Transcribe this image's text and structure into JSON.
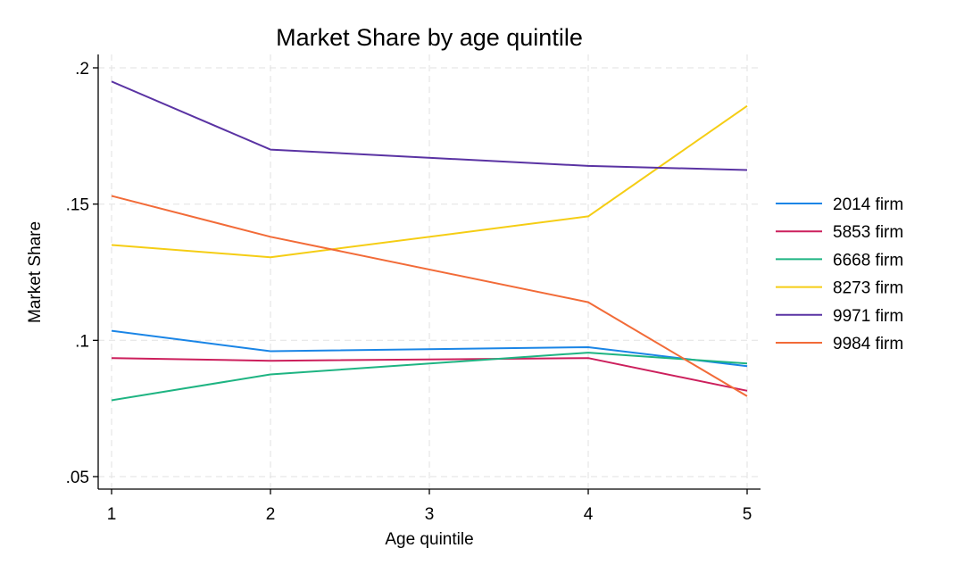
{
  "chart_data": {
    "type": "line",
    "title": "Market Share by age quintile",
    "xlabel": "Age quintile",
    "ylabel": "Market Share",
    "x": [
      1,
      2,
      3,
      4,
      5
    ],
    "xticks": [
      "1",
      "2",
      "3",
      "4",
      "5"
    ],
    "xlim": [
      1,
      5
    ],
    "ylim": [
      0.05,
      0.2
    ],
    "yticks": [
      0.05,
      0.1,
      0.15,
      0.2
    ],
    "ytick_labels": [
      ".05",
      ".1",
      ".15",
      ".2"
    ],
    "grid": true,
    "legend_position": "right",
    "series": [
      {
        "name": "2014 firm",
        "color": "#1a85e6",
        "x": [
          1,
          2,
          4,
          5
        ],
        "values": [
          0.1035,
          0.096,
          0.0975,
          0.0905
        ]
      },
      {
        "name": "5853 firm",
        "color": "#cc1f5c",
        "x": [
          1,
          2,
          4,
          5
        ],
        "values": [
          0.0935,
          0.0925,
          0.0935,
          0.0815
        ]
      },
      {
        "name": "6668 firm",
        "color": "#1eb482",
        "x": [
          1,
          2,
          4,
          5
        ],
        "values": [
          0.078,
          0.0875,
          0.0955,
          0.0915
        ]
      },
      {
        "name": "8273 firm",
        "color": "#f5cd14",
        "x": [
          1,
          2,
          4,
          5
        ],
        "values": [
          0.135,
          0.1305,
          0.1455,
          0.186
        ]
      },
      {
        "name": "9971 firm",
        "color": "#5a33a3",
        "x": [
          1,
          2,
          4,
          5
        ],
        "values": [
          0.195,
          0.17,
          0.164,
          0.1625
        ]
      },
      {
        "name": "9984 firm",
        "color": "#f26b38",
        "x": [
          1,
          2,
          4,
          5
        ],
        "values": [
          0.153,
          0.138,
          0.114,
          0.0795
        ]
      }
    ]
  }
}
